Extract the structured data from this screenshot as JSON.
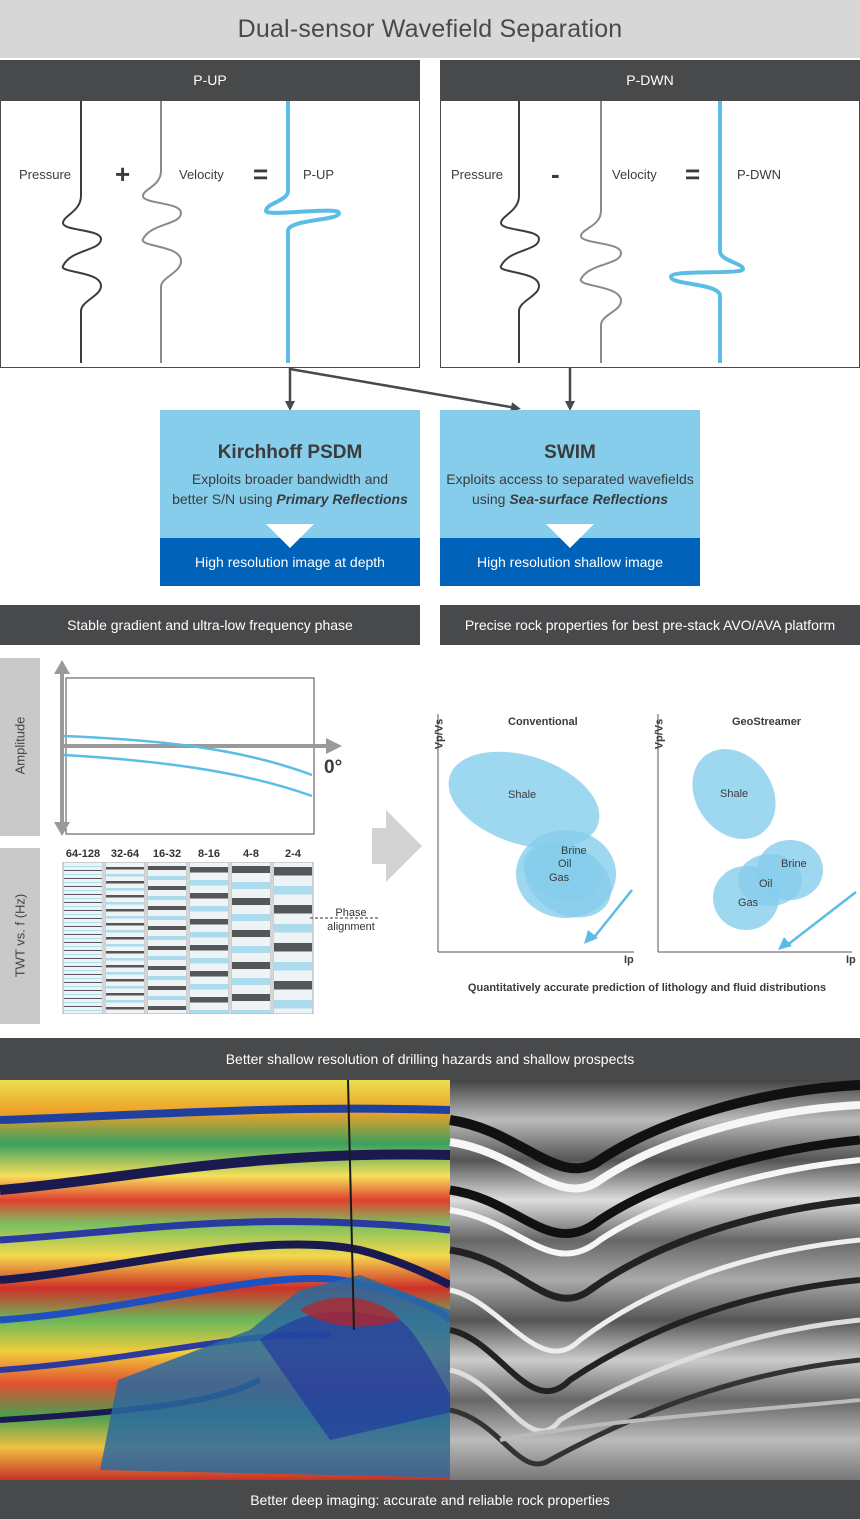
{
  "title": "Dual-sensor Wavefield Separation",
  "pup": {
    "header": "P-UP",
    "labels": [
      "Pressure",
      "Velocity",
      "P-UP"
    ],
    "operators": [
      "+",
      "="
    ]
  },
  "pdwn": {
    "header": "P-DWN",
    "labels": [
      "Pressure",
      "Velocity",
      "P-DWN"
    ],
    "operators": [
      "-",
      "="
    ]
  },
  "kirchhoff": {
    "title": "Kirchhoff PSDM",
    "line1": "Exploits broader bandwidth and",
    "line2_prefix": "better S/N using ",
    "line2_emph": "Primary Reflections",
    "result": "High resolution image at depth"
  },
  "swim": {
    "title": "SWIM",
    "line1": "Exploits access to separated wavefields",
    "line2_prefix": "using ",
    "line2_emph": "Sea-surface Reflections",
    "result": "High resolution shallow image"
  },
  "left_bar": "Stable gradient and ultra-low frequency phase",
  "right_bar": "Precise rock properties for best pre-stack AVO/AVA platform",
  "amplitude_panel": {
    "side_label": "Amplitude",
    "axis_label": "0°"
  },
  "twt_panel": {
    "side_label": "TWT vs. f (Hz)",
    "bands": [
      "64-128",
      "32-64",
      "16-32",
      "8-16",
      "4-8",
      "2-4"
    ],
    "phase_label_1": "Phase",
    "phase_label_2": "alignment"
  },
  "crossplots": [
    {
      "title": "Conventional",
      "ylabel": "Vp/Vs",
      "xlabel": "Ip",
      "labels": [
        "Shale",
        "Brine",
        "Oil",
        "Gas"
      ]
    },
    {
      "title": "GeoStreamer",
      "ylabel": "Vp/Vs",
      "xlabel": "Ip",
      "labels": [
        "Shale",
        "Brine",
        "Oil",
        "Gas"
      ]
    }
  ],
  "crossplot_caption": "Quantitatively accurate prediction of lithology and fluid distributions",
  "shallow_bar": "Better shallow resolution of drilling hazards and shallow prospects",
  "deep_bar": "Better deep imaging: accurate and reliable rock properties",
  "colors": {
    "dark_gray": "#48494b",
    "light_blue": "#86cdec",
    "dark_blue": "#0063b9",
    "trace_blue": "#5bbde6"
  }
}
